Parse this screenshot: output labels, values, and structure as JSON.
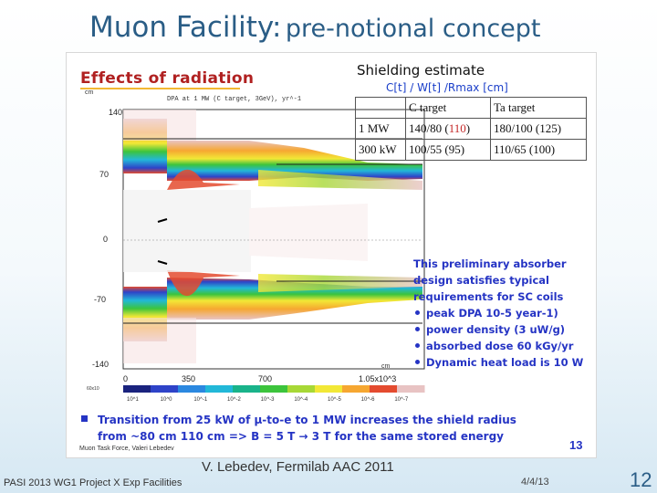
{
  "slide": {
    "title_main": "Muon Facility:",
    "title_sub": "pre-notional concept",
    "credit": "V. Lebedev, Fermilab AAC 2011",
    "footer_left": "PASI 2013 WG1 Project X Exp Facilities",
    "date": "4/4/13",
    "number": "12"
  },
  "figure": {
    "effects_title": "Effects of radiation",
    "plot_caption": "DPA at 1 MW (C target, 3GeV), yr^-1",
    "y_unit": "cm",
    "x_unit": "cm",
    "y_ticks": [
      "140",
      "70",
      "0",
      "-70",
      "-140"
    ],
    "x_ticks": [
      "0",
      "350",
      "700",
      "1.05x10^3"
    ],
    "legend_ticks": [
      "10^1",
      "10^0",
      "10^-1",
      "10^-2",
      "10^-3",
      "10^-4",
      "10^-5",
      "10^-6",
      "10^-7"
    ],
    "legend_colors": [
      "#1a237e",
      "#2e43c8",
      "#2b88e0",
      "#22b8d8",
      "#19b38a",
      "#3cc43c",
      "#a7d836",
      "#f2e836",
      "#f6a731",
      "#e44b2f",
      "#e8c3c3"
    ],
    "legend_min_label": "60x10",
    "shielding": {
      "title": "Shielding estimate",
      "formula": "C[t] / W[t] /Rmax [cm]",
      "columns": [
        "",
        "C target",
        "Ta target"
      ],
      "rows": [
        {
          "power": "1 MW",
          "c_target_main": "140/80 (",
          "c_target_red": "110",
          "c_target_end": ")",
          "ta_target": "180/100 (125)"
        },
        {
          "power": "300 kW",
          "c_target_main": "100/55 (95)",
          "c_target_red": "",
          "c_target_end": "",
          "ta_target": "110/65 (100)"
        }
      ]
    },
    "note": {
      "intro": "This preliminary absorber design satisfies typical requirements for SC coils",
      "bullets": [
        "peak DPA 10-5 year-1)",
        "power density (3 uW/g)",
        "absorbed dose 60 kGy/yr",
        "Dynamic heat load is 10 W"
      ]
    },
    "transition": "Transition from 25 kW of μ-to-e to 1 MW increases the shield radius from ~80 cm 110 cm => B = 5 T → 3 T for the same stored energy",
    "page": "13",
    "author_credit": "Muon Task Force, Valeri Lebedev"
  }
}
